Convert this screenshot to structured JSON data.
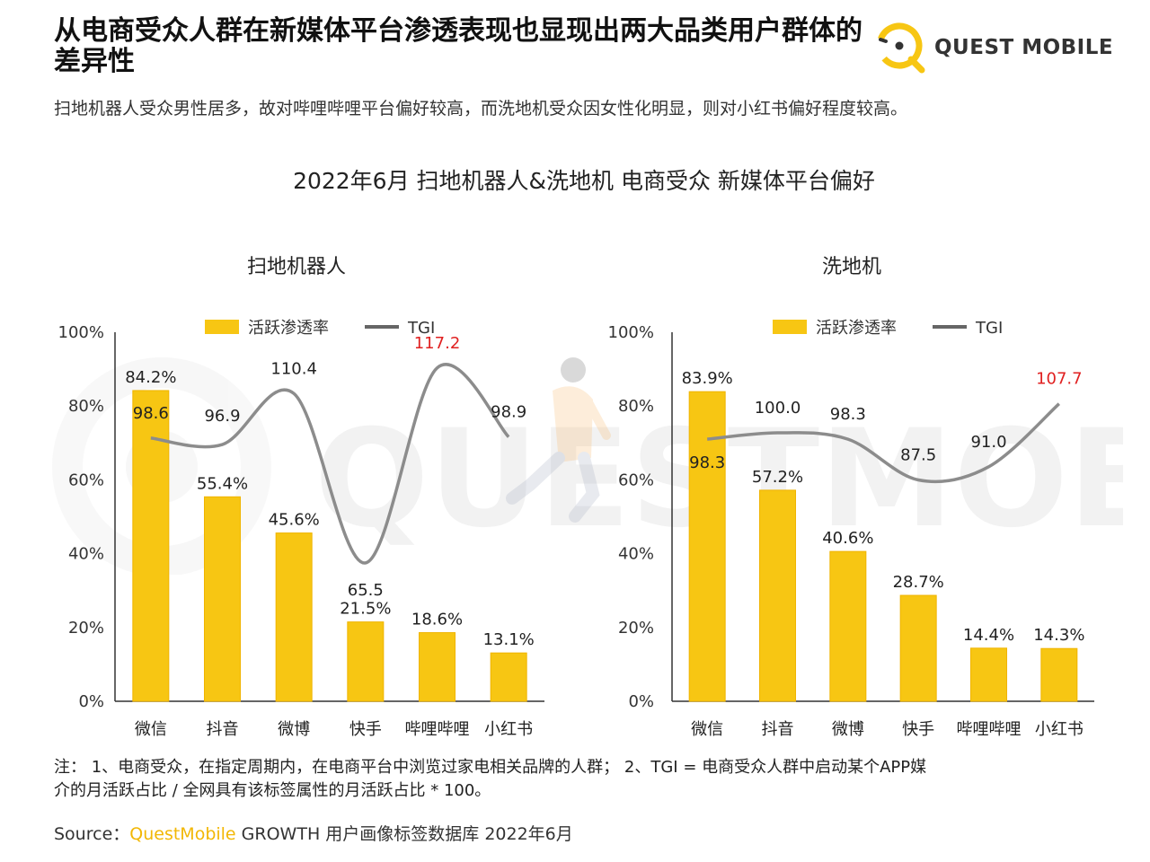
{
  "header": {
    "title": "从电商受众人群在新媒体平台渗透表现也显现出两大品类用户群体的差异性",
    "subtitle": "扫地机器人受众男性居多，故对哔哩哔哩平台偏好较高，而洗地机受众因女性化明显，则对小红书偏好程度较高。",
    "logo_text": "QUEST MOBILE"
  },
  "watermark_text": "QUESTMOBILE",
  "main_title": "2022年6月 扫地机器人&洗地机 电商受众 新媒体平台偏好",
  "chart_data": [
    {
      "type": "bar",
      "title": "扫地机器人",
      "categories": [
        "微信",
        "抖音",
        "微博",
        "快手",
        "哔哩哔哩",
        "小红书"
      ],
      "series": [
        {
          "name": "活跃渗透率",
          "type": "bar",
          "values": [
            84.2,
            55.4,
            45.6,
            21.5,
            18.6,
            13.1
          ],
          "labels": [
            "84.2%",
            "55.4%",
            "45.6%",
            "21.5%",
            "18.6%",
            "13.1%"
          ]
        },
        {
          "name": "TGI",
          "type": "line",
          "values": [
            98.6,
            96.9,
            110.4,
            65.5,
            117.2,
            98.9
          ],
          "labels": [
            "98.6",
            "96.9",
            "110.4",
            "65.5",
            "117.2",
            "98.9"
          ],
          "highlight_index": 4
        }
      ],
      "yticks": [
        "0%",
        "20%",
        "40%",
        "60%",
        "80%",
        "100%"
      ],
      "ylim": [
        0,
        100
      ],
      "legend": "top"
    },
    {
      "type": "bar",
      "title": "洗地机",
      "categories": [
        "微信",
        "抖音",
        "微博",
        "快手",
        "哔哩哔哩",
        "小红书"
      ],
      "series": [
        {
          "name": "活跃渗透率",
          "type": "bar",
          "values": [
            83.9,
            57.2,
            40.6,
            28.7,
            14.4,
            14.3
          ],
          "labels": [
            "83.9%",
            "57.2%",
            "40.6%",
            "28.7%",
            "14.4%",
            "14.3%"
          ]
        },
        {
          "name": "TGI",
          "type": "line",
          "values": [
            98.3,
            100.0,
            98.3,
            87.5,
            91.0,
            107.7
          ],
          "labels": [
            "98.3",
            "100.0",
            "98.3",
            "87.5",
            "91.0",
            "107.7"
          ],
          "highlight_index": 5
        }
      ],
      "yticks": [
        "0%",
        "20%",
        "40%",
        "60%",
        "80%",
        "100%"
      ],
      "ylim": [
        0,
        100
      ],
      "legend": "top"
    }
  ],
  "colors": {
    "bar": "#f7c613",
    "bar_edge": "#f0b400",
    "line": "#8c8c8c",
    "highlight": "#e02020",
    "axis": "#333333"
  },
  "footnote": {
    "line1": "注： 1、电商受众，在指定周期内，在电商平台中浏览过家电相关品牌的人群； 2、TGI = 电商受众人群中启动某个APP媒",
    "line2": "介的月活跃占比 / 全网具有该标签属性的月活跃占比 * 100。"
  },
  "source": {
    "prefix": "Source：",
    "brand": "QuestMobile",
    "suffix": " GROWTH 用户画像标签数据库 2022年6月"
  }
}
